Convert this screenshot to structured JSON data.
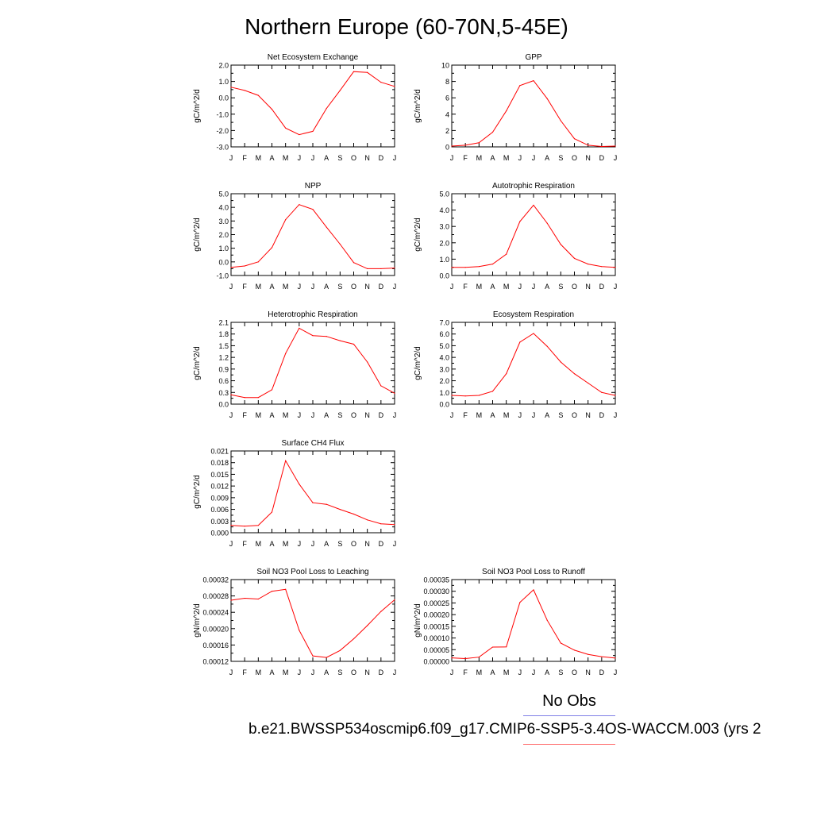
{
  "figure": {
    "title": "Northern Europe (60-70N,5-45E)",
    "legend_label": "No Obs",
    "case_label": "b.e21.BWSSP534oscmip6.f09_g17.CMIP6-SSP5-3.4OS-WACCM.003 (yrs 2",
    "legend_colors": {
      "obs": "#8080e6",
      "model": "#ff6b6b"
    },
    "line_color": "#ff0000"
  },
  "chart_data": [
    {
      "type": "line",
      "title": "Net Ecosystem Exchange",
      "ylabel": "gC/m^2/d",
      "categories": [
        "J",
        "F",
        "M",
        "A",
        "M",
        "J",
        "J",
        "A",
        "S",
        "O",
        "N",
        "D",
        "J"
      ],
      "ylim": [
        -3.0,
        2.0
      ],
      "yticks": [
        "-3.0",
        "-2.0",
        "-1.0",
        "0.0",
        "1.0",
        "2.0"
      ],
      "values": [
        0.65,
        0.45,
        0.15,
        -0.7,
        -1.85,
        -2.25,
        -2.05,
        -0.65,
        0.45,
        1.6,
        1.55,
        0.95,
        0.7
      ]
    },
    {
      "type": "line",
      "title": "GPP",
      "ylabel": "gC/m^2/d",
      "categories": [
        "J",
        "F",
        "M",
        "A",
        "M",
        "J",
        "J",
        "A",
        "S",
        "O",
        "N",
        "D",
        "J"
      ],
      "ylim": [
        0,
        10
      ],
      "yticks": [
        "0",
        "2",
        "4",
        "6",
        "8",
        "10"
      ],
      "values": [
        0.1,
        0.2,
        0.5,
        1.8,
        4.4,
        7.5,
        8.1,
        5.9,
        3.2,
        1.0,
        0.2,
        0.05,
        0.1
      ]
    },
    {
      "type": "line",
      "title": "NPP",
      "ylabel": "gC/m^2/d",
      "categories": [
        "J",
        "F",
        "M",
        "A",
        "M",
        "J",
        "J",
        "A",
        "S",
        "O",
        "N",
        "D",
        "J"
      ],
      "ylim": [
        -1.0,
        5.0
      ],
      "yticks": [
        "-1.0",
        "0.0",
        "1.0",
        "2.0",
        "3.0",
        "4.0",
        "5.0"
      ],
      "values": [
        -0.4,
        -0.3,
        0.0,
        1.05,
        3.1,
        4.2,
        3.85,
        2.55,
        1.3,
        -0.05,
        -0.5,
        -0.5,
        -0.45
      ]
    },
    {
      "type": "line",
      "title": "Autotrophic Respiration",
      "ylabel": "gC/m^2/d",
      "categories": [
        "J",
        "F",
        "M",
        "A",
        "M",
        "J",
        "J",
        "A",
        "S",
        "O",
        "N",
        "D",
        "J"
      ],
      "ylim": [
        0.0,
        5.0
      ],
      "yticks": [
        "0.0",
        "1.0",
        "2.0",
        "3.0",
        "4.0",
        "5.0"
      ],
      "values": [
        0.5,
        0.5,
        0.55,
        0.7,
        1.3,
        3.3,
        4.3,
        3.2,
        1.9,
        1.05,
        0.7,
        0.55,
        0.5
      ]
    },
    {
      "type": "line",
      "title": "Heterotrophic Respiration",
      "ylabel": "gC/m^2/d",
      "categories": [
        "J",
        "F",
        "M",
        "A",
        "M",
        "J",
        "J",
        "A",
        "S",
        "O",
        "N",
        "D",
        "J"
      ],
      "ylim": [
        0.0,
        2.1
      ],
      "yticks": [
        "0.0",
        "0.3",
        "0.6",
        "0.9",
        "1.2",
        "1.5",
        "1.8",
        "2.1"
      ],
      "values": [
        0.24,
        0.17,
        0.17,
        0.37,
        1.3,
        1.95,
        1.76,
        1.74,
        1.63,
        1.54,
        1.08,
        0.47,
        0.28
      ]
    },
    {
      "type": "line",
      "title": "Ecosystem Respiration",
      "ylabel": "gC/m^2/d",
      "categories": [
        "J",
        "F",
        "M",
        "A",
        "M",
        "J",
        "J",
        "A",
        "S",
        "O",
        "N",
        "D",
        "J"
      ],
      "ylim": [
        0.0,
        7.0
      ],
      "yticks": [
        "0.0",
        "1.0",
        "2.0",
        "3.0",
        "4.0",
        "5.0",
        "6.0",
        "7.0"
      ],
      "values": [
        0.75,
        0.7,
        0.75,
        1.1,
        2.6,
        5.3,
        6.05,
        4.95,
        3.6,
        2.6,
        1.8,
        1.0,
        0.75
      ]
    },
    {
      "type": "line",
      "title": "Surface CH4 Flux",
      "ylabel": "gC/m^2/d",
      "categories": [
        "J",
        "F",
        "M",
        "A",
        "M",
        "J",
        "J",
        "A",
        "S",
        "O",
        "N",
        "D",
        "J"
      ],
      "ylim": [
        0.0,
        0.021
      ],
      "yticks": [
        "0.000",
        "0.003",
        "0.006",
        "0.009",
        "0.012",
        "0.015",
        "0.018",
        "0.021"
      ],
      "values": [
        0.0019,
        0.0017,
        0.0019,
        0.0053,
        0.0185,
        0.0125,
        0.0077,
        0.0073,
        0.006,
        0.0048,
        0.0033,
        0.0023,
        0.0021
      ]
    },
    {
      "type": "line",
      "title": "Soil NO3 Pool Loss to Leaching",
      "ylabel": "gN/m^2/d",
      "categories": [
        "J",
        "F",
        "M",
        "A",
        "M",
        "J",
        "J",
        "A",
        "S",
        "O",
        "N",
        "D",
        "J"
      ],
      "ylim": [
        0.00012,
        0.00033
      ],
      "yticks": [
        "0.00012",
        "0.00016",
        "0.00020",
        "0.00024",
        "0.00028",
        "0.00032"
      ],
      "values": [
        0.000277,
        0.000282,
        0.00028,
        0.0003,
        0.000305,
        0.0002,
        0.000134,
        0.00013,
        0.000148,
        0.000178,
        0.000212,
        0.000248,
        0.000278
      ]
    },
    {
      "type": "line",
      "title": "Soil NO3 Pool Loss to Runoff",
      "ylabel": "gN/m^2/d",
      "categories": [
        "J",
        "F",
        "M",
        "A",
        "M",
        "J",
        "J",
        "A",
        "S",
        "O",
        "N",
        "D",
        "J"
      ],
      "ylim": [
        0.0,
        0.00035
      ],
      "yticks": [
        "0.00000",
        "0.00005",
        "0.00010",
        "0.00015",
        "0.00020",
        "0.00025",
        "0.00030",
        "0.00035"
      ],
      "values": [
        1.5e-05,
        1.2e-05,
        1.8e-05,
        6.1e-05,
        6.2e-05,
        0.000252,
        0.000306,
        0.000176,
        7.8e-05,
        4.8e-05,
        3e-05,
        2e-05,
        1.4e-05
      ]
    }
  ]
}
